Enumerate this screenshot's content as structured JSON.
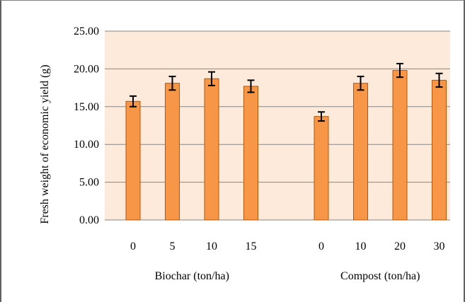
{
  "chart_data": {
    "type": "bar",
    "ylabel": "Fresh weight of economic yield (g)",
    "ylim": [
      0,
      25
    ],
    "yticks": [
      "0.00",
      "5.00",
      "10.00",
      "15.00",
      "20.00",
      "25.00"
    ],
    "grid": true,
    "groups": [
      {
        "label": "Biochar (ton/ha)",
        "categories": [
          "0",
          "5",
          "10",
          "15"
        ],
        "values": [
          15.7,
          18.1,
          18.7,
          17.7
        ],
        "errors": [
          0.7,
          0.9,
          0.9,
          0.8
        ]
      },
      {
        "label": "Compost (ton/ha)",
        "categories": [
          "0",
          "10",
          "20",
          "30"
        ],
        "values": [
          13.7,
          18.1,
          19.8,
          18.5
        ],
        "errors": [
          0.6,
          0.9,
          0.9,
          0.9
        ]
      }
    ],
    "colors": {
      "bar_fill": "#F79646",
      "bar_stroke": "#B65708",
      "plot_bg": "#FDEADA",
      "grid": "#868686",
      "error_bar": "#000000"
    }
  }
}
